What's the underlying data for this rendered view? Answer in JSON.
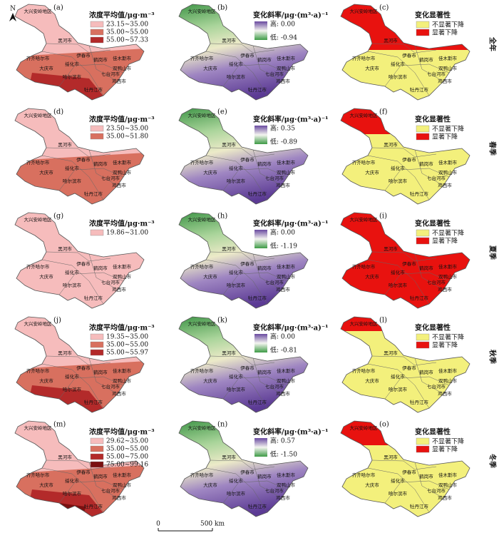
{
  "north": "N",
  "scale_bar": {
    "zero": "0",
    "label": "500 km"
  },
  "cities": [
    "大兴安岭地区",
    "黑河市",
    "齐齐哈尔市",
    "伊春市",
    "鹤岗市",
    "佳木斯市",
    "绥化市",
    "大庆市",
    "双鸭山市",
    "七台河市",
    "哈尔滨市",
    "鸡西市",
    "牡丹江市"
  ],
  "rows": [
    {
      "season": "全年",
      "panels": [
        {
          "label": "(a)",
          "legend_title": "浓度平均值/μg·m⁻³",
          "classes": [
            {
              "range": "23.15~35.00",
              "color": "#f6bcbc"
            },
            {
              "range": "35.00~55.00",
              "color": "#d8705f"
            },
            {
              "range": "55.00~57.33",
              "color": "#b32a2a"
            }
          ]
        },
        {
          "label": "(b)",
          "legend_title": "变化斜率/μg·(m³·a)⁻¹",
          "high": "高: 0.00",
          "low": "低: -0.94"
        },
        {
          "label": "(c)",
          "legend_title": "变化显著性",
          "items": [
            {
              "text": "不显著下降",
              "color": "#f3f07c"
            },
            {
              "text": "显著下降",
              "color": "#e8120f"
            }
          ]
        }
      ]
    },
    {
      "season": "春季",
      "panels": [
        {
          "label": "(d)",
          "legend_title": "浓度平均值/μg·m⁻³",
          "classes": [
            {
              "range": "23.50~35.00",
              "color": "#f6bcbc"
            },
            {
              "range": "35.00~51.80",
              "color": "#d8705f"
            }
          ]
        },
        {
          "label": "(e)",
          "legend_title": "变化斜率/μg·(m³·a)⁻¹",
          "high": "高: 0.35",
          "low": "低: -0.89"
        },
        {
          "label": "(f)",
          "legend_title": "变化显著性",
          "items": [
            {
              "text": "不显著下降",
              "color": "#f3f07c"
            },
            {
              "text": "显著下降",
              "color": "#e8120f"
            }
          ]
        }
      ]
    },
    {
      "season": "夏季",
      "panels": [
        {
          "label": "(g)",
          "legend_title": "浓度平均值/μg·m⁻³",
          "classes": [
            {
              "range": "19.86~31.00",
              "color": "#f6bcbc"
            }
          ]
        },
        {
          "label": "(h)",
          "legend_title": "变化斜率/μg·(m³·a)⁻¹",
          "high": "高: 0.00",
          "low": "低: -1.19"
        },
        {
          "label": "(i)",
          "legend_title": "变化显著性",
          "items": [
            {
              "text": "不显著下降",
              "color": "#f3f07c"
            },
            {
              "text": "显著下降",
              "color": "#e8120f"
            }
          ]
        }
      ]
    },
    {
      "season": "秋季",
      "panels": [
        {
          "label": "(j)",
          "legend_title": "浓度平均值/μg·m⁻³",
          "classes": [
            {
              "range": "19.35~35.00",
              "color": "#f6bcbc"
            },
            {
              "range": "35.00~55.00",
              "color": "#d8705f"
            },
            {
              "range": "55.00~55.97",
              "color": "#b32a2a"
            }
          ]
        },
        {
          "label": "(k)",
          "legend_title": "变化斜率/μg·(m³·a)⁻¹",
          "high": "高: 0.00",
          "low": "低: -0.81"
        },
        {
          "label": "(l)",
          "legend_title": "变化显著性",
          "items": [
            {
              "text": "不显著下降",
              "color": "#f3f07c"
            },
            {
              "text": "显著下降",
              "color": "#e8120f"
            }
          ]
        }
      ]
    },
    {
      "season": "冬季",
      "panels": [
        {
          "label": "(m)",
          "legend_title": "浓度平均值/μg·m⁻³",
          "classes": [
            {
              "range": "29.62~35.00",
              "color": "#f6bcbc"
            },
            {
              "range": "35.00~55.00",
              "color": "#d8705f"
            },
            {
              "range": "55.00~75.00",
              "color": "#b32a2a"
            },
            {
              "range": "75.00~99.16",
              "color": "#7a1010"
            }
          ]
        },
        {
          "label": "(n)",
          "legend_title": "变化斜率/μg·(m³·a)⁻¹",
          "high": "高: 0.57",
          "low": "低: -1.50"
        },
        {
          "label": "(o)",
          "legend_title": "变化显著性",
          "items": [
            {
              "text": "不显著下降",
              "color": "#f3f07c"
            },
            {
              "text": "显著下降",
              "color": "#e8120f"
            }
          ]
        }
      ]
    }
  ]
}
